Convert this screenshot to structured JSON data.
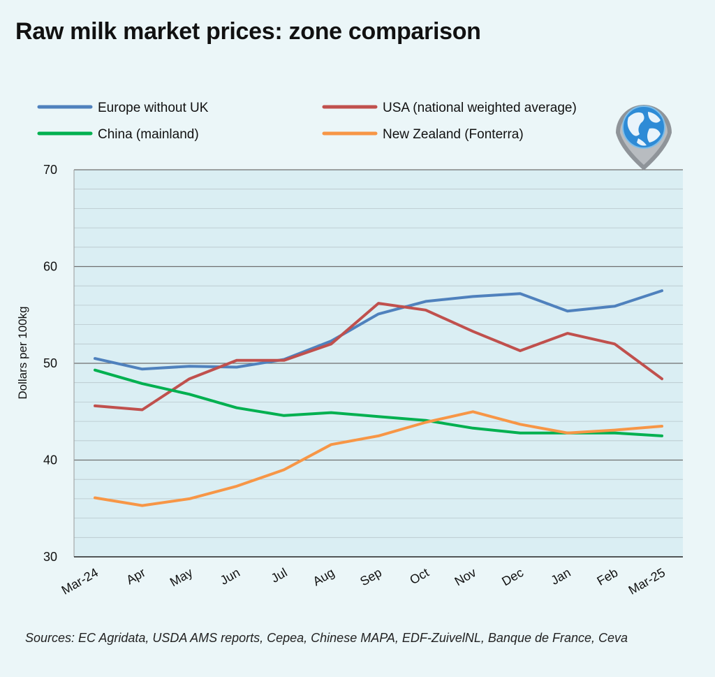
{
  "chart_data": {
    "type": "line",
    "title": "Raw milk market prices: zone comparison",
    "xlabel": "",
    "ylabel": "Dollars per 100kg",
    "ylim": [
      30,
      70
    ],
    "yticks": [
      30,
      40,
      50,
      60,
      70
    ],
    "grid": true,
    "legend_position": "top",
    "categories": [
      "Mar-24",
      "Apr",
      "May",
      "Jun",
      "Jul",
      "Aug",
      "Sep",
      "Oct",
      "Nov",
      "Dec",
      "Jan",
      "Feb",
      "Mar-25"
    ],
    "series": [
      {
        "name": "Europe without UK",
        "color": "#4f81bd",
        "values": [
          50.5,
          49.4,
          49.7,
          49.6,
          50.4,
          52.3,
          55.1,
          56.4,
          56.9,
          57.2,
          55.4,
          55.9,
          57.5
        ]
      },
      {
        "name": "USA (national weighted average)",
        "color": "#c0504d",
        "values": [
          45.6,
          45.2,
          48.4,
          50.3,
          50.3,
          52.0,
          56.2,
          55.5,
          53.3,
          51.3,
          53.1,
          52.0,
          48.4
        ]
      },
      {
        "name": "China (mainland)",
        "color": "#00b050",
        "values": [
          49.3,
          47.9,
          46.8,
          45.4,
          44.6,
          44.9,
          44.5,
          44.1,
          43.3,
          42.8,
          42.8,
          42.8,
          42.5
        ]
      },
      {
        "name": "New Zealand (Fonterra)",
        "color": "#f79646",
        "values": [
          36.1,
          35.3,
          36.0,
          37.3,
          39.0,
          41.6,
          42.5,
          43.9,
          45.0,
          43.7,
          42.8,
          43.1,
          43.5
        ]
      }
    ]
  },
  "sources": "Sources: EC Agridata, USDA AMS reports, Cepea, Chinese MAPA, EDF-ZuivelNL, Banque de France, Ceva",
  "colors": {
    "background": "#ebf6f8",
    "plot_background": "#daeef3"
  }
}
